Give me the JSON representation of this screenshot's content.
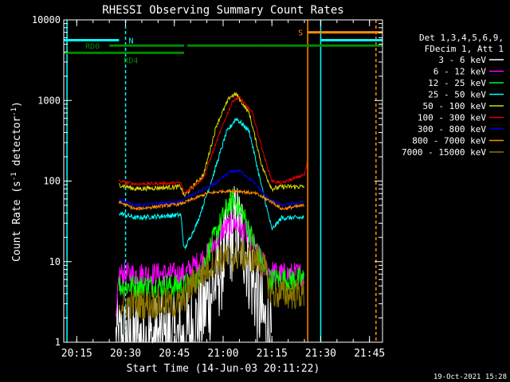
{
  "chart_data": {
    "type": "line",
    "title": "RHESSI Observing Summary Count Rates",
    "xlabel": "Start Time (14-Jun-03 20:11:22)",
    "ylabel_main": "Count Rate (s",
    "ylabel_sup1": "-1",
    "ylabel_mid": " detector",
    "ylabel_sup2": "-1",
    "ylabel_end": ")",
    "y_scale": "log",
    "ylim": [
      1,
      10000
    ],
    "xlim_minutes": [
      "20:11",
      "21:49"
    ],
    "x_ticks": [
      "20:15",
      "20:30",
      "20:45",
      "21:00",
      "21:15",
      "21:30",
      "21:45"
    ],
    "y_ticks": [
      "1",
      "10",
      "100",
      "1000",
      "10000"
    ],
    "footer_date": "19-Oct-2021 15:28",
    "legend": {
      "header": [
        "Det 1,3,4,5,6,9,",
        "FDecim 1, Att 1"
      ],
      "entries": [
        {
          "label": "3 - 6 keV",
          "color": "#ffffff"
        },
        {
          "label": "6 - 12 keV",
          "color": "#ff00ff"
        },
        {
          "label": "12 - 25 keV",
          "color": "#00ff00"
        },
        {
          "label": "25 - 50 keV",
          "color": "#00ffff"
        },
        {
          "label": "50 - 100 keV",
          "color": "#d7d700"
        },
        {
          "label": "100 - 300 keV",
          "color": "#e00000"
        },
        {
          "label": "300 - 800 keV",
          "color": "#0000d0"
        },
        {
          "label": "800 - 7000 keV",
          "color": "#ff8c00"
        },
        {
          "label": "7000 - 15000 keV",
          "color": "#8b7500"
        }
      ]
    },
    "flags": [
      {
        "label": "N",
        "color": "#00ffff",
        "segments": [
          [
            "20:11",
            "20:28"
          ],
          [
            "21:30",
            "21:49"
          ]
        ],
        "level": 5600
      },
      {
        "label": "S",
        "color": "#ff8c00",
        "segments": [
          [
            "21:26",
            "21:49"
          ]
        ],
        "level": 7000
      },
      {
        "label": "RD0",
        "color": "#008800",
        "segments": [
          [
            "20:25",
            "20:48"
          ],
          [
            "20:49",
            "21:11"
          ],
          [
            "21:11",
            "21:49"
          ]
        ],
        "level": 4800
      },
      {
        "label": "RD4",
        "color": "#008800",
        "segments": [
          [
            "20:11",
            "20:28"
          ],
          [
            "20:28",
            "20:48"
          ]
        ],
        "level": 3900
      }
    ],
    "vertical_markers": [
      {
        "time": "20:12",
        "color": "#00ffff",
        "style": "solid"
      },
      {
        "time": "20:30",
        "color": "#00ffff",
        "style": "dashed"
      },
      {
        "time": "21:26",
        "color": "#ff8c00",
        "style": "solid"
      },
      {
        "time": "21:30",
        "color": "#00ffff",
        "style": "solid"
      },
      {
        "time": "21:47",
        "color": "#ff8c00",
        "style": "dashed"
      }
    ],
    "series": [
      {
        "name": "3 - 6 keV",
        "color": "#ffffff",
        "points": [
          [
            "20:27",
            1
          ],
          [
            "20:48",
            1
          ],
          [
            "20:53",
            2
          ],
          [
            "20:58",
            6
          ],
          [
            "21:02",
            18
          ],
          [
            "21:04",
            28
          ],
          [
            "21:06",
            20
          ],
          [
            "21:09",
            6
          ],
          [
            "21:12",
            2
          ],
          [
            "21:15",
            1
          ]
        ],
        "noise": 0.6
      },
      {
        "name": "6 - 12 keV",
        "color": "#ff00ff",
        "points": [
          [
            "20:27",
            1.5
          ],
          [
            "20:28",
            7
          ],
          [
            "20:45",
            7
          ],
          [
            "20:48",
            7
          ],
          [
            "20:55",
            12
          ],
          [
            "21:00",
            25
          ],
          [
            "21:04",
            30
          ],
          [
            "21:08",
            20
          ],
          [
            "21:13",
            8
          ],
          [
            "21:17",
            7
          ],
          [
            "21:25",
            7
          ]
        ],
        "noise": 0.15
      },
      {
        "name": "12 - 25 keV",
        "color": "#00ff00",
        "points": [
          [
            "20:28",
            5
          ],
          [
            "20:48",
            5
          ],
          [
            "20:52",
            6
          ],
          [
            "20:56",
            15
          ],
          [
            "21:01",
            45
          ],
          [
            "21:03",
            60
          ],
          [
            "21:06",
            40
          ],
          [
            "21:10",
            15
          ],
          [
            "21:14",
            6
          ],
          [
            "21:25",
            6
          ]
        ],
        "noise": 0.15
      },
      {
        "name": "25 - 50 keV",
        "color": "#00ffff",
        "points": [
          [
            "20:28",
            40
          ],
          [
            "20:33",
            35
          ],
          [
            "20:47",
            38
          ],
          [
            "20:48",
            14
          ],
          [
            "20:52",
            30
          ],
          [
            "20:57",
            120
          ],
          [
            "21:01",
            400
          ],
          [
            "21:04",
            600
          ],
          [
            "21:08",
            420
          ],
          [
            "21:12",
            80
          ],
          [
            "21:15",
            25
          ],
          [
            "21:18",
            35
          ],
          [
            "21:25",
            35
          ]
        ],
        "noise": 0.03
      },
      {
        "name": "50 - 100 keV",
        "color": "#d7d700",
        "points": [
          [
            "20:28",
            90
          ],
          [
            "20:33",
            80
          ],
          [
            "20:47",
            85
          ],
          [
            "20:48",
            65
          ],
          [
            "20:54",
            120
          ],
          [
            "20:58",
            500
          ],
          [
            "21:02",
            1100
          ],
          [
            "21:04",
            1200
          ],
          [
            "21:08",
            700
          ],
          [
            "21:12",
            150
          ],
          [
            "21:15",
            80
          ],
          [
            "21:18",
            85
          ],
          [
            "21:25",
            85
          ]
        ],
        "noise": 0.03
      },
      {
        "name": "100 - 300 keV",
        "color": "#e00000",
        "points": [
          [
            "20:28",
            100
          ],
          [
            "20:33",
            92
          ],
          [
            "20:47",
            95
          ],
          [
            "20:48",
            70
          ],
          [
            "20:54",
            110
          ],
          [
            "20:59",
            400
          ],
          [
            "21:03",
            1000
          ],
          [
            "21:05",
            1100
          ],
          [
            "21:09",
            700
          ],
          [
            "21:13",
            180
          ],
          [
            "21:15",
            100
          ],
          [
            "21:18",
            95
          ],
          [
            "21:25",
            120
          ],
          [
            "21:26",
            180
          ]
        ],
        "noise": 0.02
      },
      {
        "name": "300 - 800 keV",
        "color": "#0000d0",
        "points": [
          [
            "20:28",
            60
          ],
          [
            "20:33",
            50
          ],
          [
            "20:47",
            55
          ],
          [
            "20:48",
            60
          ],
          [
            "20:58",
            95
          ],
          [
            "21:02",
            130
          ],
          [
            "21:05",
            135
          ],
          [
            "21:09",
            100
          ],
          [
            "21:14",
            60
          ],
          [
            "21:18",
            50
          ],
          [
            "21:25",
            55
          ]
        ],
        "noise": 0.02
      },
      {
        "name": "800 - 7000 keV",
        "color": "#ff8c00",
        "points": [
          [
            "20:28",
            55
          ],
          [
            "20:33",
            45
          ],
          [
            "20:47",
            52
          ],
          [
            "20:55",
            70
          ],
          [
            "21:00",
            75
          ],
          [
            "21:05",
            75
          ],
          [
            "21:10",
            70
          ],
          [
            "21:15",
            55
          ],
          [
            "21:18",
            45
          ],
          [
            "21:25",
            50
          ]
        ],
        "noise": 0.02
      },
      {
        "name": "7000 - 15000 keV",
        "color": "#8b7500",
        "points": [
          [
            "20:28",
            3
          ],
          [
            "20:47",
            3
          ],
          [
            "20:50",
            5
          ],
          [
            "20:57",
            10
          ],
          [
            "21:05",
            12
          ],
          [
            "21:12",
            10
          ],
          [
            "21:15",
            4
          ],
          [
            "21:25",
            4
          ]
        ],
        "noise": 0.2
      }
    ]
  }
}
